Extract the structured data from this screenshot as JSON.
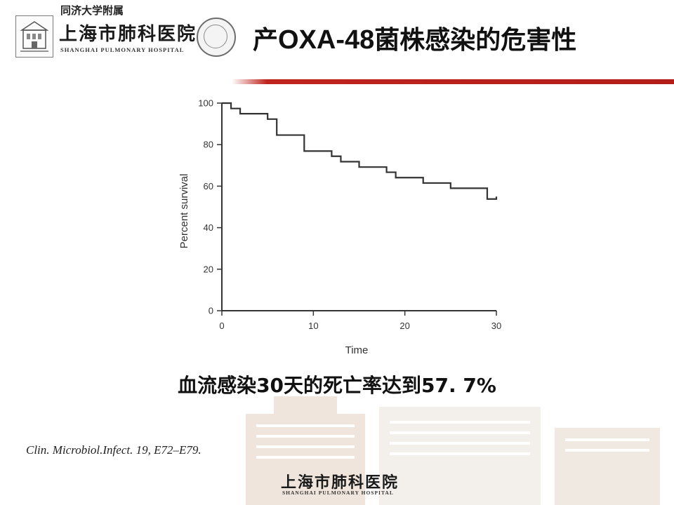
{
  "header": {
    "affiliation": "同济大学附属",
    "hospital_cn": "上海市肺科医院",
    "hospital_en": "SHANGHAI PULMONARY HOSPITAL",
    "title_prefix": "产",
    "title_latin": "OXA-48",
    "title_suffix": "菌株感染的危害性"
  },
  "chart_data": {
    "type": "line",
    "style": "step",
    "xlabel": "Time",
    "ylabel": "Percent survival",
    "xlim": [
      0,
      30
    ],
    "ylim": [
      0,
      100
    ],
    "xticks": [
      0,
      10,
      20,
      30
    ],
    "yticks": [
      0,
      20,
      40,
      60,
      80,
      100
    ],
    "grid": false,
    "series": [
      {
        "color": "#333333",
        "points": [
          [
            0,
            100
          ],
          [
            1,
            100
          ],
          [
            1,
            97.4
          ],
          [
            2,
            97.4
          ],
          [
            2,
            94.9
          ],
          [
            5,
            94.9
          ],
          [
            5,
            92.3
          ],
          [
            6,
            92.3
          ],
          [
            6,
            84.6
          ],
          [
            9,
            84.6
          ],
          [
            9,
            76.9
          ],
          [
            12,
            76.9
          ],
          [
            12,
            74.4
          ],
          [
            13,
            74.4
          ],
          [
            13,
            71.8
          ],
          [
            15,
            71.8
          ],
          [
            15,
            69.2
          ],
          [
            18,
            69.2
          ],
          [
            18,
            66.7
          ],
          [
            19,
            66.7
          ],
          [
            19,
            64.1
          ],
          [
            22,
            64.1
          ],
          [
            22,
            61.5
          ],
          [
            25,
            61.5
          ],
          [
            25,
            59.0
          ],
          [
            29,
            59.0
          ],
          [
            29,
            53.8
          ],
          [
            30,
            53.8
          ],
          [
            30,
            55.0
          ]
        ]
      }
    ]
  },
  "subtitle": "血流感染30天的死亡率达到57. 7%",
  "citation": "Clin. Microbiol.Infect. 19, E72–E79.",
  "footer": {
    "hospital_cn": "上海市肺科医院",
    "hospital_en": "SHANGHAI PULMONARY HOSPITAL"
  },
  "colors": {
    "accent_red": "#b21d1a",
    "text": "#111111"
  }
}
